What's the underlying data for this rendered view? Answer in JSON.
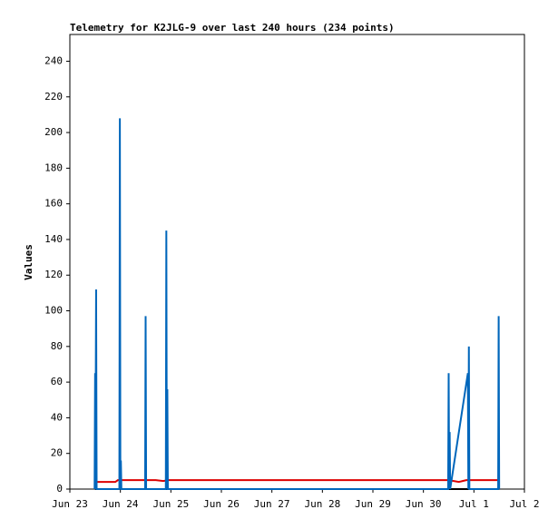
{
  "chart_data": {
    "type": "line",
    "title": "Telemetry for K2JLG-9 over last 240 hours (234 points)",
    "y_label": "Values",
    "xlim": [
      0,
      9
    ],
    "ylim": [
      0,
      255
    ],
    "xticks": [
      {
        "value": 0,
        "label": "Jun 23"
      },
      {
        "value": 1,
        "label": "Jun 24"
      },
      {
        "value": 2,
        "label": "Jun 25"
      },
      {
        "value": 3,
        "label": "Jun 26"
      },
      {
        "value": 4,
        "label": "Jun 27"
      },
      {
        "value": 5,
        "label": "Jun 28"
      },
      {
        "value": 6,
        "label": "Jun 29"
      },
      {
        "value": 7,
        "label": "Jun 30"
      },
      {
        "value": 8,
        "label": "Jul 1"
      },
      {
        "value": 9,
        "label": "Jul 2"
      }
    ],
    "yticks": [
      0,
      20,
      40,
      60,
      80,
      100,
      120,
      140,
      160,
      180,
      200,
      220,
      240
    ],
    "series": [
      {
        "color": "#000000",
        "x": [
          0.5,
          8.5
        ],
        "values": [
          0,
          0
        ]
      },
      {
        "color": "#dd0000",
        "x": [
          0.5,
          0.9,
          0.95,
          1.7,
          1.85,
          1.95,
          7.5,
          7.7,
          7.85,
          8.5
        ],
        "values": [
          4,
          4,
          5,
          5,
          4.5,
          5,
          5,
          4,
          5,
          5
        ]
      },
      {
        "color": "#0066bb",
        "x": [
          0.49,
          0.5,
          0.505,
          0.52,
          0.53,
          0.98,
          0.99,
          1.0,
          1.01,
          1.02,
          1.49,
          1.5,
          1.51,
          1.9,
          1.91,
          1.92,
          1.93,
          1.94,
          7.49,
          7.5,
          7.51,
          7.52,
          7.53,
          7.88,
          7.89,
          7.9,
          7.91,
          8.48,
          8.49,
          8.5
        ],
        "values": [
          0,
          65,
          0,
          112,
          0,
          0,
          208,
          0,
          16,
          0,
          0,
          97,
          0,
          0,
          145,
          0,
          56,
          0,
          0,
          65,
          0,
          32,
          0,
          65,
          0,
          80,
          0,
          0,
          97,
          0
        ]
      }
    ]
  }
}
